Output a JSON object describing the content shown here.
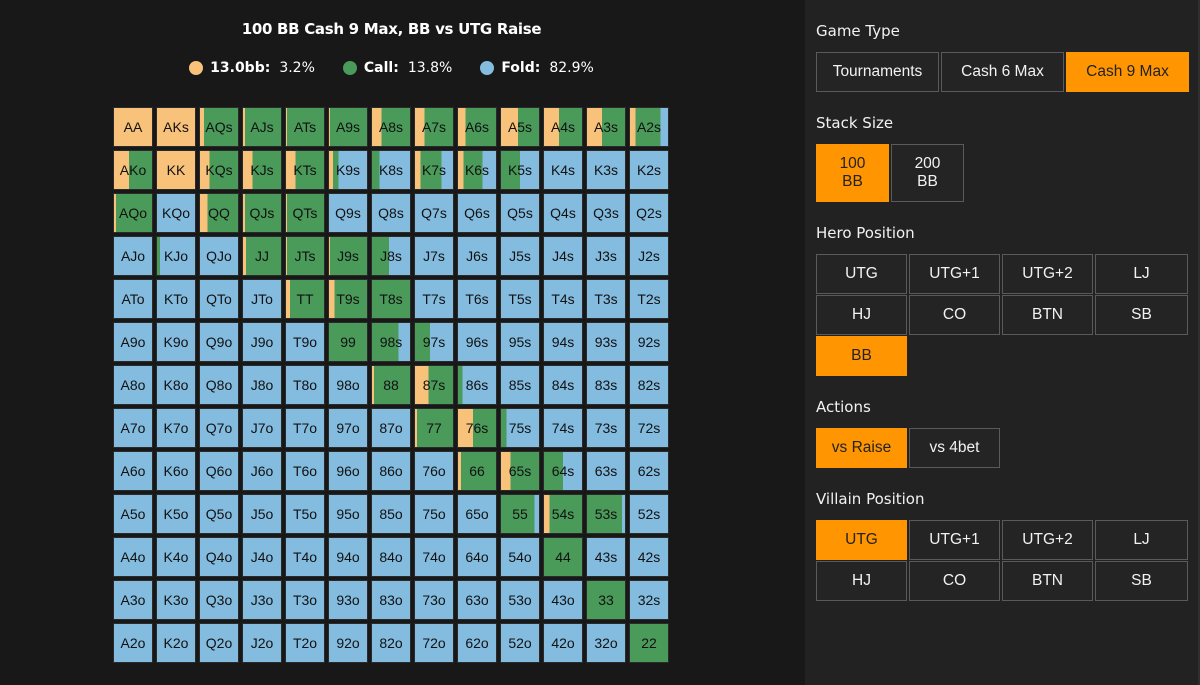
{
  "header": {
    "title": "100 BB Cash 9 Max, BB vs UTG Raise"
  },
  "legend": [
    {
      "label": "13.0bb:",
      "value": "3.2%",
      "color": "#f9c27a"
    },
    {
      "label": "Call:",
      "value": "13.8%",
      "color": "#4a9a5a"
    },
    {
      "label": "Fold:",
      "value": "82.9%",
      "color": "#84bce0"
    }
  ],
  "colors": {
    "raise": "#f9c27a",
    "call": "#4a9a5a",
    "fold": "#84bce0",
    "accent": "#ff9500",
    "panel_bg": "#222222",
    "main_bg": "#181818"
  },
  "chart_data": {
    "type": "heatmap",
    "title": "100 BB Cash 9 Max, BB vs UTG Raise",
    "legend": [
      "13.0bb (raise)",
      "Call",
      "Fold"
    ],
    "totals": {
      "raise": 3.2,
      "call": 13.8,
      "fold": 82.9
    },
    "ranks": [
      "A",
      "K",
      "Q",
      "J",
      "T",
      "9",
      "8",
      "7",
      "6",
      "5",
      "4",
      "3",
      "2"
    ],
    "cell_format": "[hand, raise%, call%, fold%]",
    "rows": [
      [
        [
          "AA",
          100,
          0,
          0
        ],
        [
          "AKs",
          100,
          0,
          0
        ],
        [
          "AQs",
          10,
          90,
          0
        ],
        [
          "AJs",
          5,
          95,
          0
        ],
        [
          "ATs",
          3,
          97,
          0
        ],
        [
          "A9s",
          3,
          97,
          0
        ],
        [
          "A8s",
          25,
          75,
          0
        ],
        [
          "A7s",
          25,
          75,
          0
        ],
        [
          "A6s",
          20,
          80,
          0
        ],
        [
          "A5s",
          45,
          55,
          0
        ],
        [
          "A4s",
          40,
          60,
          0
        ],
        [
          "A3s",
          40,
          60,
          0
        ],
        [
          "A2s",
          15,
          65,
          20
        ]
      ],
      [
        [
          "AKo",
          40,
          60,
          0
        ],
        [
          "KK",
          100,
          0,
          0
        ],
        [
          "KQs",
          25,
          75,
          0
        ],
        [
          "KJs",
          25,
          75,
          0
        ],
        [
          "KTs",
          25,
          75,
          0
        ],
        [
          "K9s",
          10,
          15,
          75
        ],
        [
          "K8s",
          0,
          20,
          80
        ],
        [
          "K7s",
          15,
          55,
          30
        ],
        [
          "K6s",
          15,
          50,
          35
        ],
        [
          "K5s",
          0,
          50,
          50
        ],
        [
          "K4s",
          0,
          0,
          100
        ],
        [
          "K3s",
          0,
          0,
          100
        ],
        [
          "K2s",
          0,
          0,
          100
        ]
      ],
      [
        [
          "AQo",
          5,
          95,
          0
        ],
        [
          "KQo",
          0,
          0,
          100
        ],
        [
          "QQ",
          20,
          80,
          0
        ],
        [
          "QJs",
          5,
          95,
          0
        ],
        [
          "QTs",
          3,
          97,
          0
        ],
        [
          "Q9s",
          0,
          0,
          100
        ],
        [
          "Q8s",
          0,
          0,
          100
        ],
        [
          "Q7s",
          0,
          0,
          100
        ],
        [
          "Q6s",
          0,
          0,
          100
        ],
        [
          "Q5s",
          0,
          0,
          100
        ],
        [
          "Q4s",
          0,
          0,
          100
        ],
        [
          "Q3s",
          0,
          0,
          100
        ],
        [
          "Q2s",
          0,
          0,
          100
        ]
      ],
      [
        [
          "AJo",
          0,
          0,
          100
        ],
        [
          "KJo",
          0,
          8,
          92
        ],
        [
          "QJo",
          0,
          0,
          100
        ],
        [
          "JJ",
          8,
          92,
          0
        ],
        [
          "JTs",
          3,
          97,
          0
        ],
        [
          "J9s",
          3,
          97,
          0
        ],
        [
          "J8s",
          0,
          45,
          55
        ],
        [
          "J7s",
          0,
          0,
          100
        ],
        [
          "J6s",
          0,
          0,
          100
        ],
        [
          "J5s",
          0,
          0,
          100
        ],
        [
          "J4s",
          0,
          0,
          100
        ],
        [
          "J3s",
          0,
          0,
          100
        ],
        [
          "J2s",
          0,
          0,
          100
        ]
      ],
      [
        [
          "ATo",
          0,
          0,
          100
        ],
        [
          "KTo",
          0,
          0,
          100
        ],
        [
          "QTo",
          0,
          0,
          100
        ],
        [
          "JTo",
          0,
          0,
          100
        ],
        [
          "TT",
          10,
          90,
          0
        ],
        [
          "T9s",
          15,
          85,
          0
        ],
        [
          "T8s",
          0,
          100,
          0
        ],
        [
          "T7s",
          0,
          0,
          100
        ],
        [
          "T6s",
          0,
          0,
          100
        ],
        [
          "T5s",
          0,
          0,
          100
        ],
        [
          "T4s",
          0,
          0,
          100
        ],
        [
          "T3s",
          0,
          0,
          100
        ],
        [
          "T2s",
          0,
          0,
          100
        ]
      ],
      [
        [
          "A9o",
          0,
          0,
          100
        ],
        [
          "K9o",
          0,
          0,
          100
        ],
        [
          "Q9o",
          0,
          0,
          100
        ],
        [
          "J9o",
          0,
          0,
          100
        ],
        [
          "T9o",
          0,
          0,
          100
        ],
        [
          "99",
          0,
          100,
          0
        ],
        [
          "98s",
          0,
          70,
          30
        ],
        [
          "97s",
          0,
          40,
          60
        ],
        [
          "96s",
          0,
          0,
          100
        ],
        [
          "95s",
          0,
          0,
          100
        ],
        [
          "94s",
          0,
          0,
          100
        ],
        [
          "93s",
          0,
          0,
          100
        ],
        [
          "92s",
          0,
          0,
          100
        ]
      ],
      [
        [
          "A8o",
          0,
          0,
          100
        ],
        [
          "K8o",
          0,
          0,
          100
        ],
        [
          "Q8o",
          0,
          0,
          100
        ],
        [
          "J8o",
          0,
          0,
          100
        ],
        [
          "T8o",
          0,
          0,
          100
        ],
        [
          "98o",
          0,
          0,
          100
        ],
        [
          "88",
          5,
          95,
          0
        ],
        [
          "87s",
          35,
          65,
          0
        ],
        [
          "86s",
          0,
          12,
          88
        ],
        [
          "85s",
          0,
          0,
          100
        ],
        [
          "84s",
          0,
          0,
          100
        ],
        [
          "83s",
          0,
          0,
          100
        ],
        [
          "82s",
          0,
          0,
          100
        ]
      ],
      [
        [
          "A7o",
          0,
          0,
          100
        ],
        [
          "K7o",
          0,
          0,
          100
        ],
        [
          "Q7o",
          0,
          0,
          100
        ],
        [
          "J7o",
          0,
          0,
          100
        ],
        [
          "T7o",
          0,
          0,
          100
        ],
        [
          "97o",
          0,
          0,
          100
        ],
        [
          "87o",
          0,
          0,
          100
        ],
        [
          "77",
          5,
          95,
          0
        ],
        [
          "76s",
          40,
          60,
          0
        ],
        [
          "75s",
          0,
          15,
          85
        ],
        [
          "74s",
          0,
          0,
          100
        ],
        [
          "73s",
          0,
          0,
          100
        ],
        [
          "72s",
          0,
          0,
          100
        ]
      ],
      [
        [
          "A6o",
          0,
          0,
          100
        ],
        [
          "K6o",
          0,
          0,
          100
        ],
        [
          "Q6o",
          0,
          0,
          100
        ],
        [
          "J6o",
          0,
          0,
          100
        ],
        [
          "T6o",
          0,
          0,
          100
        ],
        [
          "96o",
          0,
          0,
          100
        ],
        [
          "86o",
          0,
          0,
          100
        ],
        [
          "76o",
          0,
          0,
          100
        ],
        [
          "66",
          8,
          92,
          0
        ],
        [
          "65s",
          25,
          75,
          0
        ],
        [
          "64s",
          0,
          50,
          50
        ],
        [
          "63s",
          0,
          0,
          100
        ],
        [
          "62s",
          0,
          0,
          100
        ]
      ],
      [
        [
          "A5o",
          0,
          0,
          100
        ],
        [
          "K5o",
          0,
          0,
          100
        ],
        [
          "Q5o",
          0,
          0,
          100
        ],
        [
          "J5o",
          0,
          0,
          100
        ],
        [
          "T5o",
          0,
          0,
          100
        ],
        [
          "95o",
          0,
          0,
          100
        ],
        [
          "85o",
          0,
          0,
          100
        ],
        [
          "75o",
          0,
          0,
          100
        ],
        [
          "65o",
          0,
          0,
          100
        ],
        [
          "55",
          0,
          88,
          12
        ],
        [
          "54s",
          15,
          85,
          0
        ],
        [
          "53s",
          0,
          92,
          8
        ],
        [
          "52s",
          0,
          0,
          100
        ]
      ],
      [
        [
          "A4o",
          0,
          0,
          100
        ],
        [
          "K4o",
          0,
          0,
          100
        ],
        [
          "Q4o",
          0,
          0,
          100
        ],
        [
          "J4o",
          0,
          0,
          100
        ],
        [
          "T4o",
          0,
          0,
          100
        ],
        [
          "94o",
          0,
          0,
          100
        ],
        [
          "84o",
          0,
          0,
          100
        ],
        [
          "74o",
          0,
          0,
          100
        ],
        [
          "64o",
          0,
          0,
          100
        ],
        [
          "54o",
          0,
          0,
          100
        ],
        [
          "44",
          0,
          100,
          0
        ],
        [
          "43s",
          0,
          0,
          100
        ],
        [
          "42s",
          0,
          0,
          100
        ]
      ],
      [
        [
          "A3o",
          0,
          0,
          100
        ],
        [
          "K3o",
          0,
          0,
          100
        ],
        [
          "Q3o",
          0,
          0,
          100
        ],
        [
          "J3o",
          0,
          0,
          100
        ],
        [
          "T3o",
          0,
          0,
          100
        ],
        [
          "93o",
          0,
          0,
          100
        ],
        [
          "83o",
          0,
          0,
          100
        ],
        [
          "73o",
          0,
          0,
          100
        ],
        [
          "63o",
          0,
          0,
          100
        ],
        [
          "53o",
          0,
          0,
          100
        ],
        [
          "43o",
          0,
          0,
          100
        ],
        [
          "33",
          0,
          100,
          0
        ],
        [
          "32s",
          0,
          0,
          100
        ]
      ],
      [
        [
          "A2o",
          0,
          0,
          100
        ],
        [
          "K2o",
          0,
          0,
          100
        ],
        [
          "Q2o",
          0,
          0,
          100
        ],
        [
          "J2o",
          0,
          0,
          100
        ],
        [
          "T2o",
          0,
          0,
          100
        ],
        [
          "92o",
          0,
          0,
          100
        ],
        [
          "82o",
          0,
          0,
          100
        ],
        [
          "72o",
          0,
          0,
          100
        ],
        [
          "62o",
          0,
          0,
          100
        ],
        [
          "52o",
          0,
          0,
          100
        ],
        [
          "42o",
          0,
          0,
          100
        ],
        [
          "32o",
          0,
          0,
          100
        ],
        [
          "22",
          0,
          100,
          0
        ]
      ]
    ]
  },
  "sidebar": {
    "game_type": {
      "label": "Game Type",
      "options": [
        "Tournaments",
        "Cash 6 Max",
        "Cash 9 Max"
      ],
      "selected": "Cash 9 Max"
    },
    "stack_size": {
      "label": "Stack Size",
      "options": [
        "100\nBB",
        "200\nBB"
      ],
      "option_lines": [
        [
          "100",
          "BB"
        ],
        [
          "200",
          "BB"
        ]
      ],
      "selected_index": 0
    },
    "hero_position": {
      "label": "Hero Position",
      "options": [
        "UTG",
        "UTG+1",
        "UTG+2",
        "LJ",
        "HJ",
        "CO",
        "BTN",
        "SB",
        "BB"
      ],
      "selected": "BB"
    },
    "actions": {
      "label": "Actions",
      "options": [
        "vs Raise",
        "vs 4bet"
      ],
      "selected": "vs Raise"
    },
    "villain_position": {
      "label": "Villain Position",
      "options": [
        "UTG",
        "UTG+1",
        "UTG+2",
        "LJ",
        "HJ",
        "CO",
        "BTN",
        "SB"
      ],
      "selected": "UTG"
    }
  }
}
